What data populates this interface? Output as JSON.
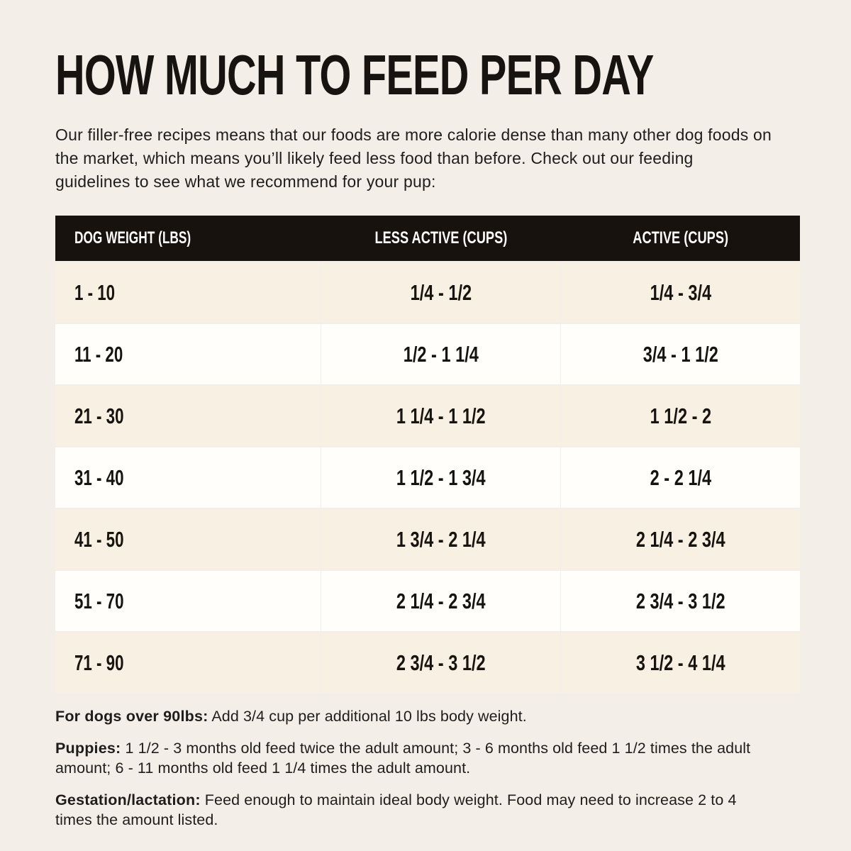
{
  "page": {
    "title": "HOW MUCH TO FEED PER DAY",
    "intro": "Our filler-free recipes means that our foods are more calorie dense than many other dog foods on the market, which means you’ll likely feed less food than before. Check out our feeding guidelines to see what we recommend for your pup:"
  },
  "colors": {
    "page_bg": "#f3efe8",
    "table_header_bg": "#17120e",
    "table_header_text": "#fffdf9",
    "row_cream": "#f8f0e2",
    "row_white": "#fffefb",
    "text": "#1f1d1b"
  },
  "chart_data": {
    "type": "table",
    "title": "HOW MUCH TO FEED PER DAY",
    "columns": [
      "DOG WEIGHT (LBS)",
      "LESS ACTIVE (CUPS)",
      "ACTIVE (CUPS)"
    ],
    "rows": [
      [
        "1 - 10",
        "1/4 - 1/2",
        "1/4 - 3/4"
      ],
      [
        "11 - 20",
        "1/2 - 1 1/4",
        "3/4 - 1 1/2"
      ],
      [
        "21 - 30",
        "1 1/4 - 1 1/2",
        "1 1/2 - 2"
      ],
      [
        "31 - 40",
        "1 1/2 - 1 3/4",
        "2 - 2 1/4"
      ],
      [
        "41 - 50",
        "1 3/4 - 2 1/4",
        "2 1/4 - 2 3/4"
      ],
      [
        "51 - 70",
        "2 1/4 - 2 3/4",
        "2 3/4 - 3 1/2"
      ],
      [
        "71 - 90",
        "2 3/4 - 3 1/2",
        "3 1/2 - 4 1/4"
      ]
    ]
  },
  "footnotes": [
    {
      "label": "For dogs over 90lbs:",
      "text": "Add 3/4 cup per additional 10 lbs body weight."
    },
    {
      "label": "Puppies:",
      "text": "1 1/2 - 3 months old feed twice the adult amount; 3 - 6 months old feed 1 1/2 times the adult amount; 6 - 11 months old feed 1 1/4 times the adult amount."
    },
    {
      "label": "Gestation/lactation:",
      "text": "Feed enough to maintain ideal body weight. Food may need to increase 2 to 4 times the amount listed."
    }
  ]
}
